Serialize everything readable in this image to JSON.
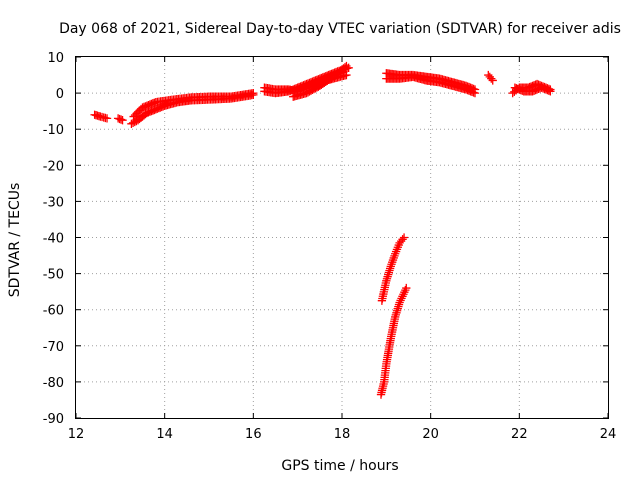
{
  "chart_data": {
    "type": "scatter",
    "title": "Day 068 of 2021, Sidereal Day-to-day VTEC variation (SDTVAR) for receiver adis",
    "xlabel": "GPS time / hours",
    "ylabel": "SDTVAR / TECUs",
    "xlim": [
      12,
      24
    ],
    "ylim": [
      -90,
      10
    ],
    "x_ticks": [
      12,
      14,
      16,
      18,
      20,
      22,
      24
    ],
    "y_ticks": [
      10,
      0,
      -10,
      -20,
      -30,
      -40,
      -50,
      -60,
      -70,
      -80,
      -90
    ],
    "grid": true,
    "marker": "plus",
    "color": "#ff0000",
    "series": [
      {
        "segments": [
          [
            [
              12.42,
              -6.0
            ],
            [
              12.55,
              -6.5
            ],
            [
              12.7,
              -7.0
            ]
          ],
          [
            [
              12.95,
              -7.0
            ],
            [
              13.05,
              -7.5
            ]
          ],
          [
            [
              13.25,
              -8.5
            ],
            [
              13.4,
              -7.5
            ],
            [
              13.6,
              -5.5
            ],
            [
              13.8,
              -4.5
            ],
            [
              14.0,
              -3.5
            ],
            [
              14.3,
              -2.5
            ],
            [
              14.6,
              -2.0
            ],
            [
              15.0,
              -1.8
            ],
            [
              15.5,
              -1.5
            ],
            [
              16.0,
              -0.5
            ]
          ],
          [
            [
              13.3,
              -6.5
            ],
            [
              13.5,
              -4.0
            ],
            [
              13.8,
              -2.5
            ],
            [
              14.2,
              -1.8
            ],
            [
              14.6,
              -1.2
            ],
            [
              15.0,
              -1.0
            ],
            [
              15.5,
              -1.0
            ],
            [
              16.0,
              0.0
            ]
          ],
          [
            [
              16.25,
              0.5
            ],
            [
              16.5,
              0.0
            ],
            [
              16.8,
              0.5
            ],
            [
              17.0,
              1.5
            ],
            [
              17.3,
              3.0
            ],
            [
              17.6,
              4.5
            ],
            [
              17.9,
              6.0
            ],
            [
              18.15,
              7.0
            ]
          ],
          [
            [
              16.25,
              1.5
            ],
            [
              16.5,
              1.0
            ],
            [
              16.8,
              1.0
            ],
            [
              17.0,
              0.5
            ],
            [
              17.2,
              1.5
            ],
            [
              17.5,
              3.0
            ],
            [
              17.8,
              4.0
            ],
            [
              18.1,
              5.0
            ]
          ],
          [
            [
              16.9,
              -1.0
            ],
            [
              17.2,
              0.0
            ],
            [
              17.5,
              2.0
            ],
            [
              17.8,
              4.5
            ],
            [
              18.1,
              7.5
            ]
          ],
          [
            [
              19.0,
              5.5
            ],
            [
              19.3,
              5.0
            ],
            [
              19.6,
              5.0
            ],
            [
              19.9,
              4.5
            ],
            [
              20.2,
              4.0
            ],
            [
              20.5,
              3.0
            ],
            [
              20.8,
              2.0
            ],
            [
              21.0,
              1.0
            ]
          ],
          [
            [
              19.0,
              4.0
            ],
            [
              19.3,
              4.0
            ],
            [
              19.6,
              4.5
            ],
            [
              19.9,
              3.5
            ],
            [
              20.2,
              3.0
            ],
            [
              20.5,
              2.0
            ],
            [
              20.8,
              1.0
            ],
            [
              21.0,
              0.0
            ]
          ],
          [
            [
              21.3,
              5.0
            ],
            [
              21.4,
              3.5
            ]
          ],
          [
            [
              21.85,
              0.0
            ],
            [
              22.0,
              1.5
            ],
            [
              22.2,
              1.5
            ],
            [
              22.4,
              2.5
            ],
            [
              22.7,
              1.0
            ]
          ],
          [
            [
              21.9,
              1.5
            ],
            [
              22.1,
              0.5
            ],
            [
              22.3,
              0.5
            ],
            [
              22.5,
              1.5
            ],
            [
              22.7,
              0.5
            ]
          ],
          [
            [
              18.9,
              -57.5
            ],
            [
              19.0,
              -52.0
            ],
            [
              19.1,
              -48.0
            ],
            [
              19.2,
              -44.5
            ],
            [
              19.3,
              -41.5
            ],
            [
              19.4,
              -40.0
            ]
          ],
          [
            [
              18.88,
              -83.5
            ],
            [
              18.95,
              -80.0
            ],
            [
              19.0,
              -75.0
            ],
            [
              19.1,
              -68.0
            ],
            [
              19.2,
              -62.0
            ],
            [
              19.3,
              -58.0
            ],
            [
              19.45,
              -54.0
            ]
          ]
        ]
      }
    ]
  }
}
